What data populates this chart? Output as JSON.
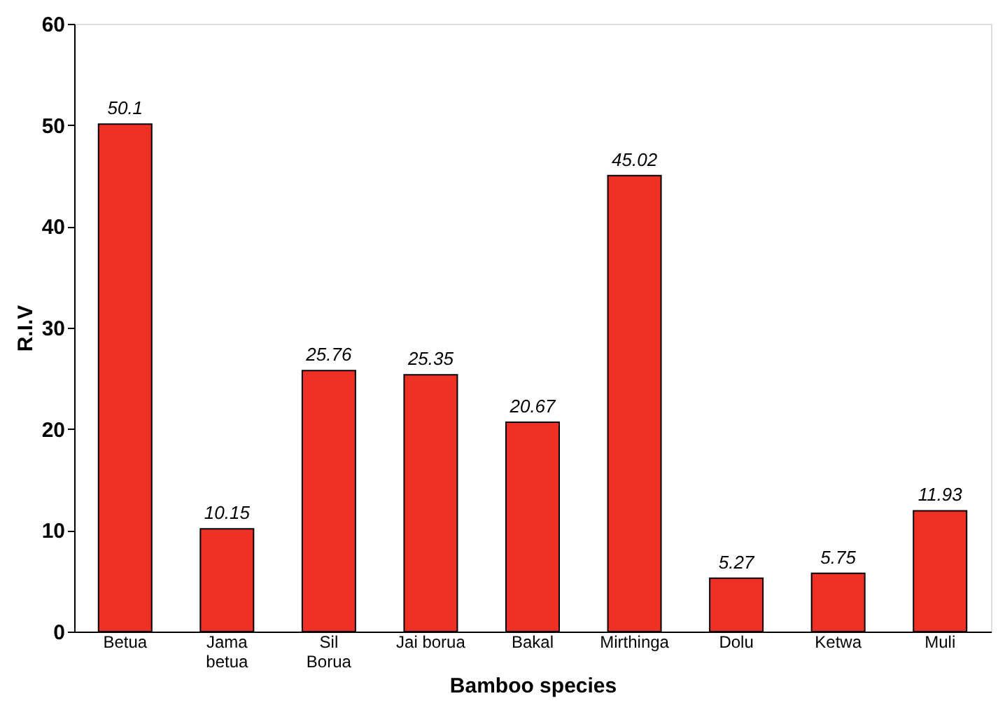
{
  "chart_data": {
    "type": "bar",
    "xlabel": "Bamboo species",
    "ylabel": "R.I.V",
    "categories": [
      "Betua",
      "Jama\nbetua",
      "Sil\nBorua",
      "Jai borua",
      "Bakal",
      "Mirthinga",
      "Dolu",
      "Ketwa",
      "Muli"
    ],
    "values": [
      50.1,
      10.15,
      25.76,
      25.35,
      20.67,
      45.02,
      5.27,
      5.75,
      11.93
    ],
    "color": "#ee3124",
    "ylim": [
      0,
      60
    ],
    "yticks": [
      0,
      10,
      20,
      30,
      40,
      50,
      60
    ],
    "grid": false,
    "data_labels": true
  }
}
